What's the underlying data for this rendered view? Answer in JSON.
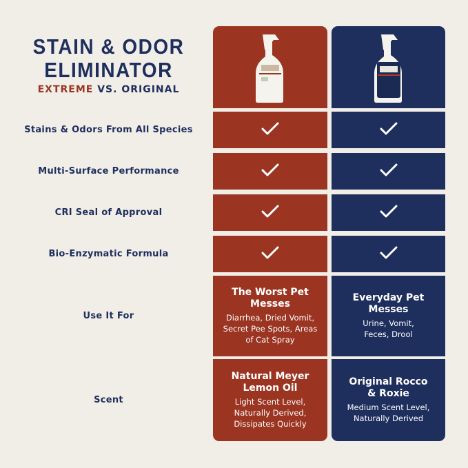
{
  "title": {
    "line1": "STAIN & ODOR",
    "line2": "ELIMINATOR",
    "extreme": "EXTREME",
    "rest": " VS. ORIGINAL"
  },
  "colors": {
    "extreme": "#9b3522",
    "original": "#1e2f5e",
    "background": "#f1ede7"
  },
  "products": [
    {
      "name": "Extreme",
      "image": "spray-bottle-white-label",
      "bottle_label": "STAIN & ODOR ELIMINATOR"
    },
    {
      "name": "Original",
      "image": "spray-bottle-navy-label",
      "bottle_label": "STAIN & ODOR ELIMINATOR"
    }
  ],
  "rows": [
    {
      "label": "Stains & Odors From All Species",
      "extreme": "check-icon",
      "original": "check-icon"
    },
    {
      "label": "Multi-Surface Performance",
      "extreme": "check-icon",
      "original": "check-icon"
    },
    {
      "label": "CRI Seal of Approval",
      "extreme": "check-icon",
      "original": "check-icon"
    },
    {
      "label": "Bio-Enzymatic Formula",
      "extreme": "check-icon",
      "original": "check-icon"
    },
    {
      "label": "Use It For",
      "extreme": {
        "head": "The Worst Pet Messes",
        "sub": "Diarrhea, Dried Vomit, Secret Pee Spots, Areas of Cat Spray"
      },
      "original": {
        "head": "Everyday Pet Messes",
        "sub": "Urine, Vomit, Feces, Drool"
      }
    },
    {
      "label": "Scent",
      "extreme": {
        "head": "Natural Meyer Lemon Oil",
        "sub": "Light Scent Level, Naturally Derived, Dissipates Quickly"
      },
      "original": {
        "head": "Original Rocco & Roxie",
        "sub": "Medium Scent Level, Naturally Derived"
      }
    }
  ]
}
